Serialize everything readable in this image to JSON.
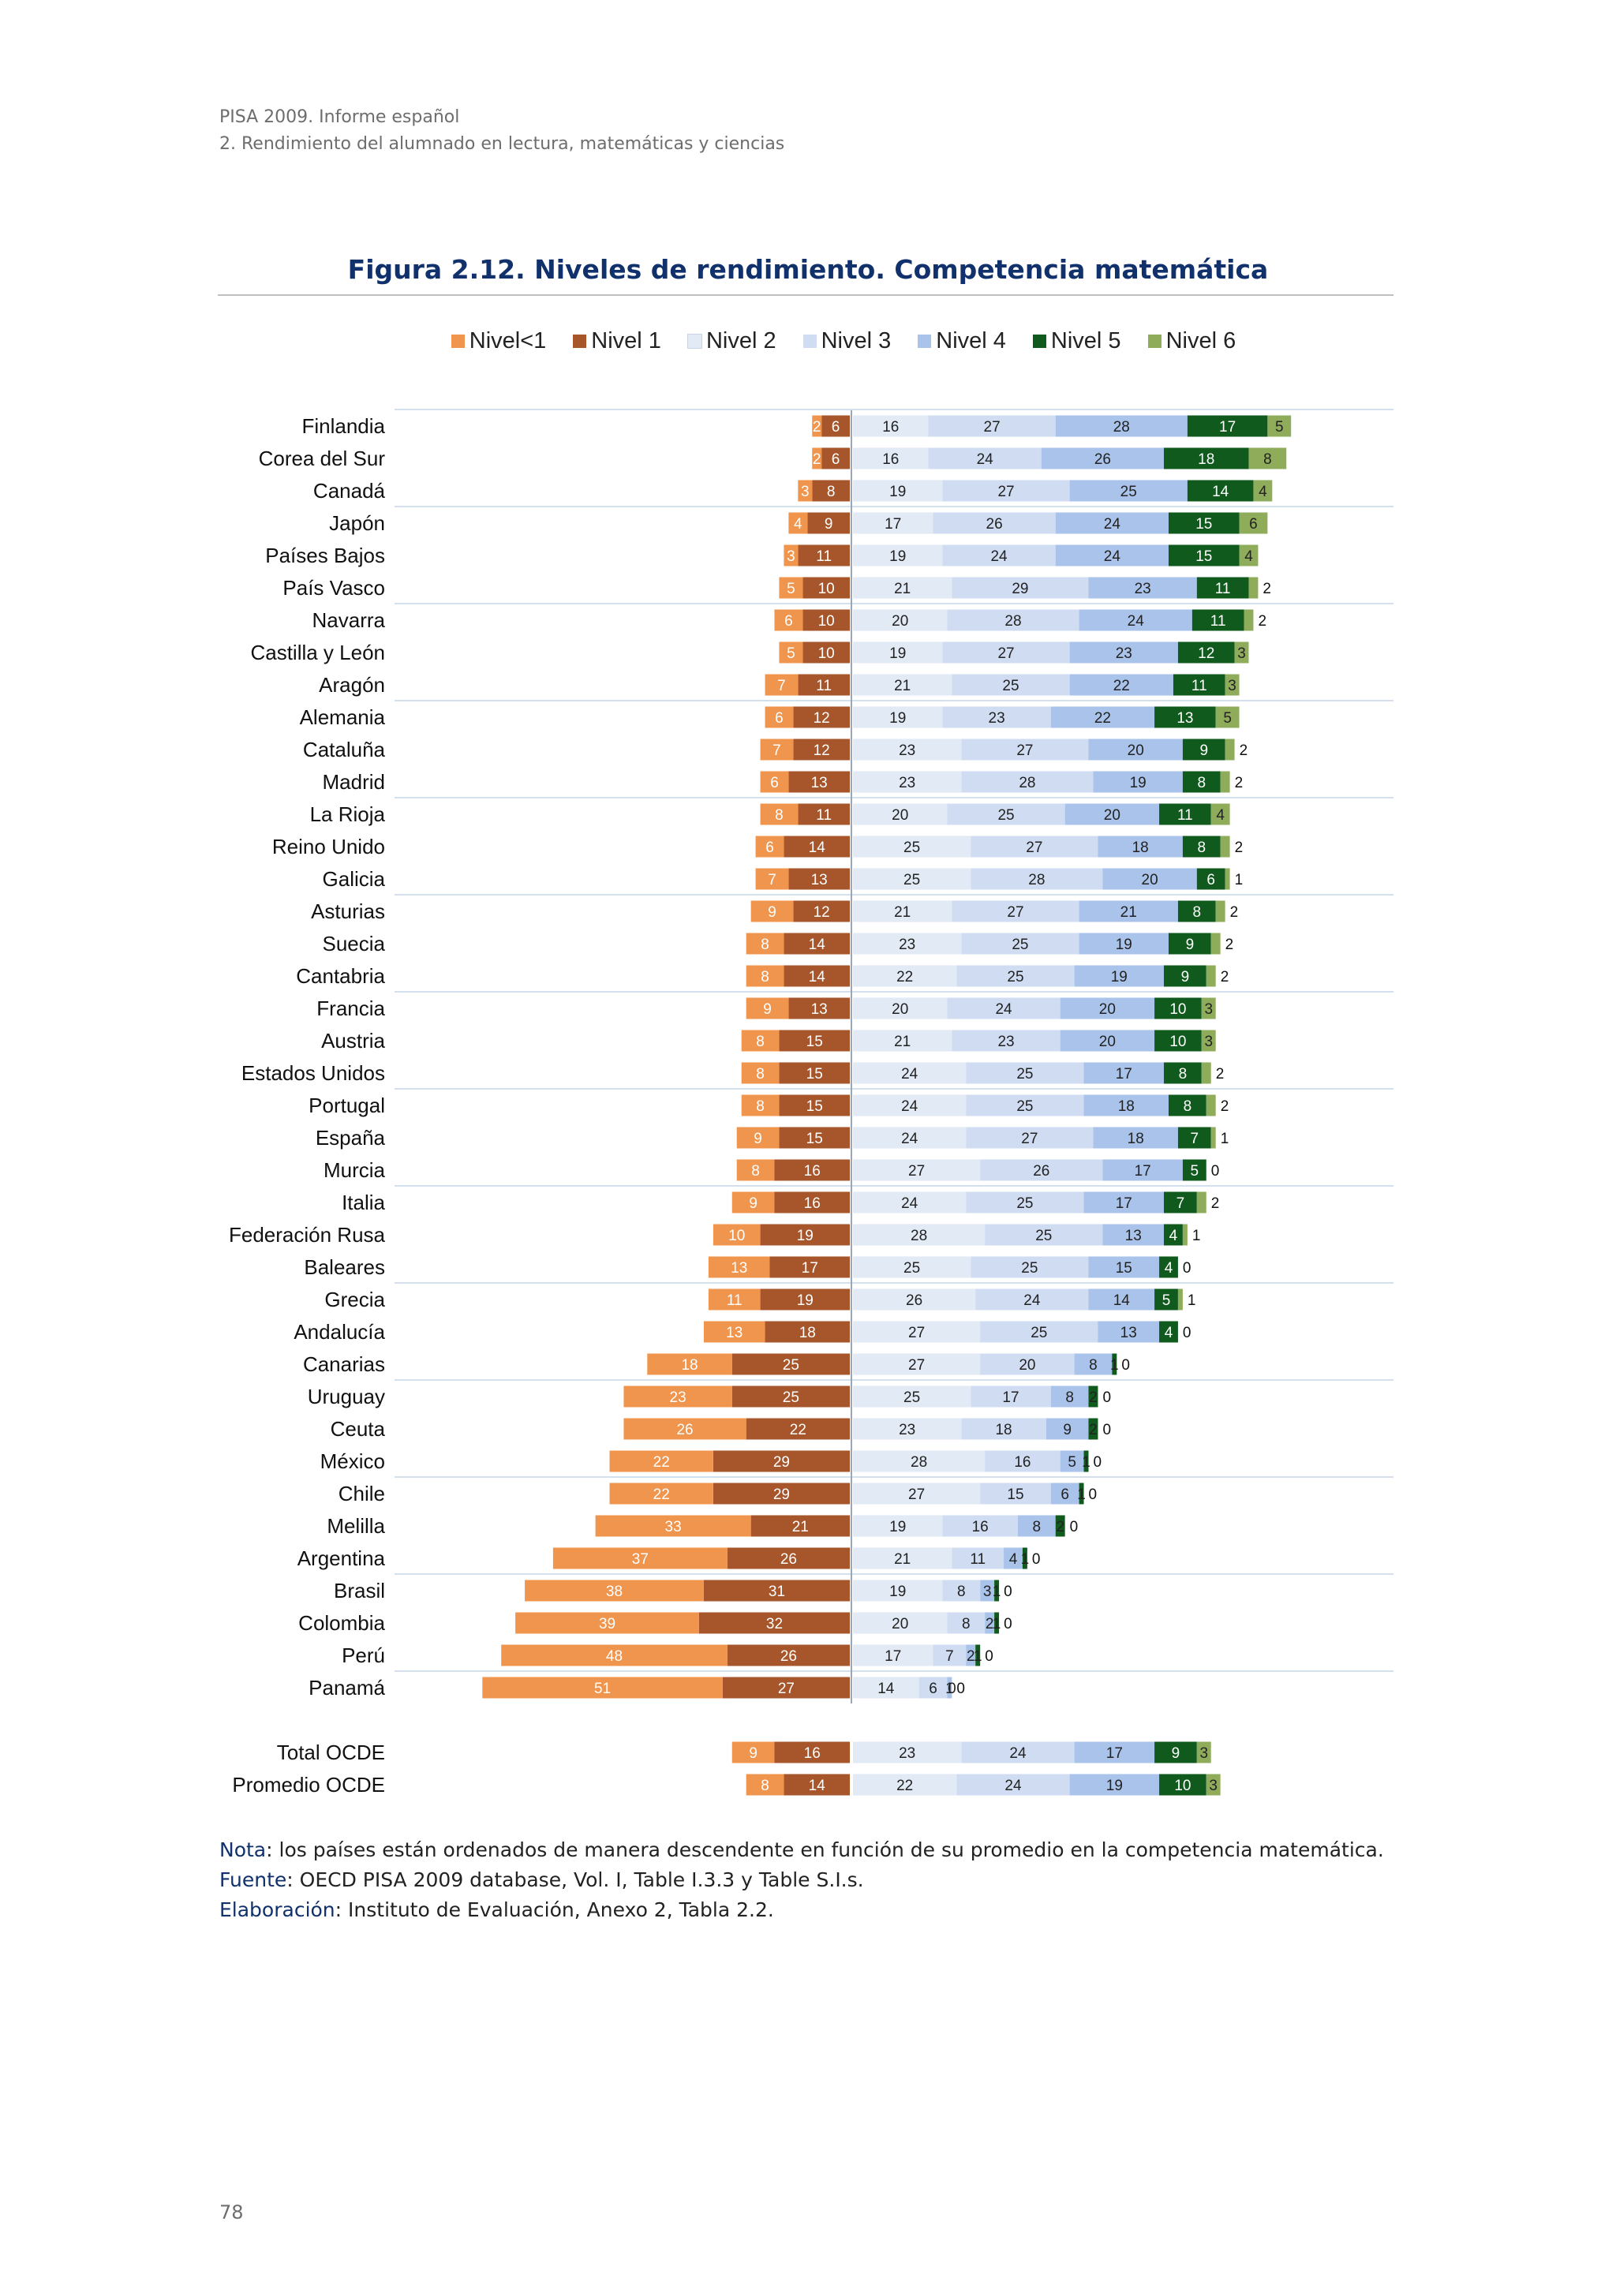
{
  "header": {
    "line1": "PISA 2009. Informe español",
    "line2": "2. Rendimiento del alumnado en lectura, matemáticas y ciencias"
  },
  "figure_title": "Figura 2.12. Niveles de rendimiento. Competencia matemática",
  "notes": {
    "nota_label": "Nota",
    "nota_text": ": los países están ordenados de manera descendente en función de su promedio en la competencia matemática.",
    "fuente_label": "Fuente",
    "fuente_text": ": OECD PISA 2009 database, Vol. I,  Table I.3.3 y Table S.I.s.",
    "elaboracion_label": "Elaboración",
    "elaboracion_text": ": Instituto de Evaluación, Anexo 2, Tabla 2.2."
  },
  "page_number": "78",
  "chart_data": {
    "type": "bar",
    "orientation": "horizontal",
    "stacked": "diverging",
    "legend_position": "top",
    "legend": [
      "Nivel<1",
      "Nivel 1",
      "Nivel 2",
      "Nivel 3",
      "Nivel 4",
      "Nivel 5",
      "Nivel 6"
    ],
    "colors": [
      "#f0954d",
      "#a7552a",
      "#e2eaf6",
      "#cfdcf1",
      "#a9c3ea",
      "#0f5a1c",
      "#8fac5a"
    ],
    "categories": [
      "Finlandia",
      "Corea del Sur",
      "Canadá",
      "Japón",
      "Países Bajos",
      "País Vasco",
      "Navarra",
      "Castilla y León",
      "Aragón",
      "Alemania",
      "Cataluña",
      "Madrid",
      "La Rioja",
      "Reino Unido",
      "Galicia",
      "Asturias",
      "Suecia",
      "Cantabria",
      "Francia",
      "Austria",
      "Estados Unidos",
      "Portugal",
      "España",
      "Murcia",
      "Italia",
      "Federación Rusa",
      "Baleares",
      "Grecia",
      "Andalucía",
      "Canarias",
      "Uruguay",
      "Ceuta",
      "México",
      "Chile",
      "Melilla",
      "Argentina",
      "Brasil",
      "Colombia",
      "Perú",
      "Panamá",
      "Total OCDE",
      "Promedio OCDE"
    ],
    "series": [
      {
        "name": "Nivel<1",
        "values": [
          2,
          2,
          3,
          4,
          3,
          5,
          6,
          5,
          7,
          6,
          7,
          6,
          8,
          6,
          7,
          9,
          8,
          8,
          9,
          8,
          8,
          8,
          9,
          8,
          9,
          10,
          13,
          11,
          13,
          18,
          23,
          26,
          22,
          22,
          33,
          37,
          38,
          39,
          48,
          51,
          9,
          8
        ]
      },
      {
        "name": "Nivel 1",
        "values": [
          6,
          6,
          8,
          9,
          11,
          10,
          10,
          10,
          11,
          12,
          12,
          13,
          11,
          14,
          13,
          12,
          14,
          14,
          13,
          15,
          15,
          15,
          15,
          16,
          16,
          19,
          17,
          19,
          18,
          25,
          25,
          22,
          29,
          29,
          21,
          26,
          31,
          32,
          26,
          27,
          16,
          14
        ]
      },
      {
        "name": "Nivel 2",
        "values": [
          16,
          16,
          19,
          17,
          19,
          21,
          20,
          19,
          21,
          19,
          23,
          23,
          20,
          25,
          25,
          21,
          23,
          22,
          20,
          21,
          24,
          24,
          24,
          27,
          24,
          28,
          25,
          26,
          27,
          27,
          25,
          23,
          28,
          27,
          19,
          21,
          19,
          20,
          17,
          14,
          23,
          22
        ]
      },
      {
        "name": "Nivel 3",
        "values": [
          27,
          24,
          27,
          26,
          24,
          29,
          28,
          27,
          25,
          23,
          27,
          28,
          25,
          27,
          28,
          27,
          25,
          25,
          24,
          23,
          25,
          25,
          27,
          26,
          25,
          25,
          25,
          24,
          25,
          20,
          17,
          18,
          16,
          15,
          16,
          11,
          8,
          8,
          7,
          6,
          24,
          24
        ]
      },
      {
        "name": "Nivel 4",
        "values": [
          28,
          26,
          25,
          24,
          24,
          23,
          24,
          23,
          22,
          22,
          20,
          19,
          20,
          18,
          20,
          21,
          19,
          19,
          20,
          20,
          17,
          18,
          18,
          17,
          17,
          13,
          15,
          14,
          13,
          8,
          8,
          9,
          5,
          6,
          8,
          4,
          3,
          2,
          2,
          1,
          17,
          19
        ]
      },
      {
        "name": "Nivel 5",
        "values": [
          17,
          18,
          14,
          15,
          15,
          11,
          11,
          12,
          11,
          13,
          9,
          8,
          11,
          8,
          6,
          8,
          9,
          9,
          10,
          10,
          8,
          8,
          7,
          5,
          7,
          4,
          4,
          5,
          4,
          1,
          2,
          2,
          1,
          1,
          2,
          1,
          1,
          1,
          1,
          0,
          9,
          10
        ]
      },
      {
        "name": "Nivel 6",
        "values": [
          5,
          8,
          4,
          6,
          4,
          2,
          2,
          3,
          3,
          5,
          2,
          2,
          4,
          2,
          1,
          2,
          2,
          2,
          3,
          3,
          2,
          2,
          1,
          0,
          2,
          1,
          0,
          1,
          0,
          0,
          0,
          0,
          0,
          0,
          0,
          0,
          0,
          0,
          0,
          0,
          3,
          3
        ]
      }
    ],
    "blank_row_before": "Total OCDE"
  }
}
